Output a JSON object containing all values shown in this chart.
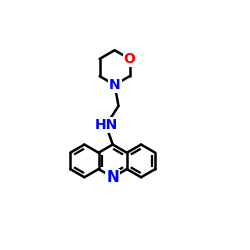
{
  "background": "#ffffff",
  "bond_color": "#000000",
  "bond_width": 1.8,
  "N_color": "#0000ff",
  "O_color": "#ff0000",
  "font_size": 10,
  "xlim": [
    0.0,
    1.0
  ],
  "ylim": [
    0.0,
    1.0
  ]
}
